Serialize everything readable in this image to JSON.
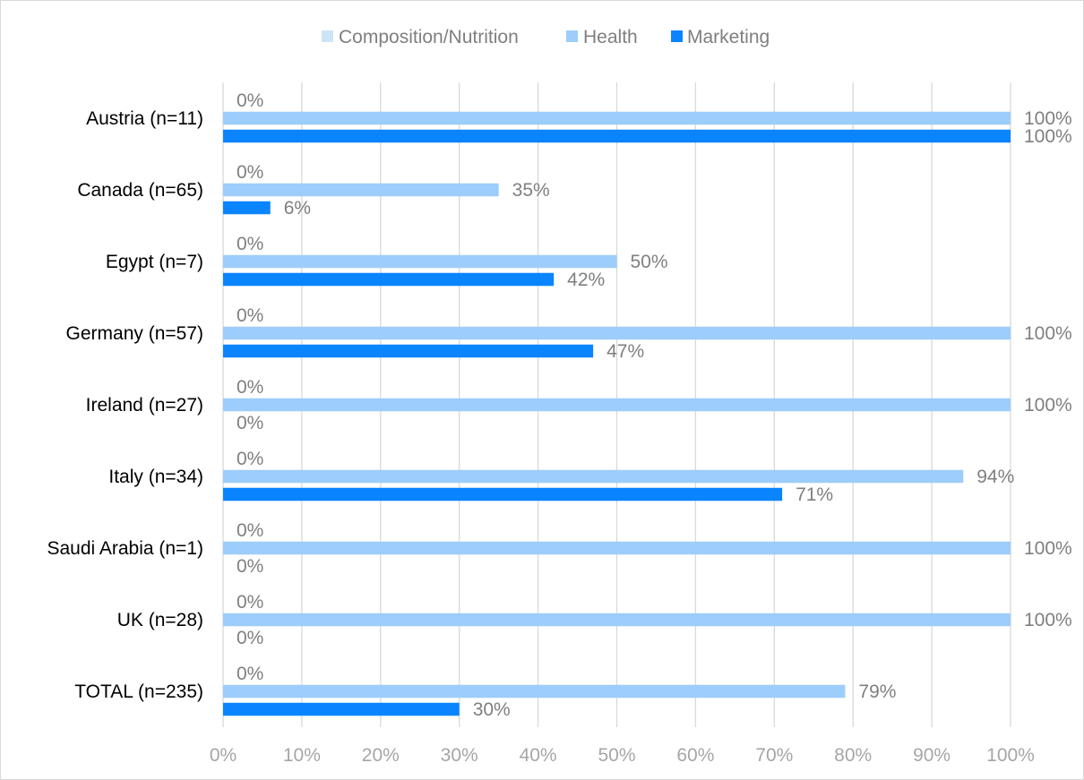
{
  "chart_data": {
    "type": "bar",
    "orientation": "horizontal",
    "categories": [
      "Austria (n=11)",
      "Canada (n=65)",
      "Egypt (n=7)",
      "Germany (n=57)",
      "Ireland (n=27)",
      "Italy (n=34)",
      "Saudi Arabia (n=1)",
      "UK (n=28)",
      "TOTAL (n=235)"
    ],
    "series": [
      {
        "name": "Composition/Nutrition",
        "color": "#cce4f7",
        "values": [
          0,
          0,
          0,
          0,
          0,
          0,
          0,
          0,
          0
        ],
        "labels": [
          "0%",
          "0%",
          "0%",
          "0%",
          "0%",
          "0%",
          "0%",
          "0%",
          "0%"
        ]
      },
      {
        "name": "Health",
        "color": "#9dcdfa",
        "values": [
          100,
          35,
          50,
          100,
          100,
          94,
          100,
          100,
          79
        ],
        "labels": [
          "100%",
          "35%",
          "50%",
          "100%",
          "100%",
          "94%",
          "100%",
          "100%",
          "79%"
        ]
      },
      {
        "name": "Marketing",
        "color": "#0a84ff",
        "values": [
          100,
          6,
          42,
          47,
          0,
          71,
          0,
          0,
          30
        ],
        "labels": [
          "100%",
          "6%",
          "42%",
          "47%",
          "0%",
          "71%",
          "0%",
          "0%",
          "30%"
        ]
      }
    ],
    "x_ticks": [
      "0%",
      "10%",
      "20%",
      "30%",
      "40%",
      "50%",
      "60%",
      "70%",
      "80%",
      "90%",
      "100%"
    ],
    "xlim": [
      0,
      100
    ],
    "grid": true,
    "legend_position": "top"
  }
}
